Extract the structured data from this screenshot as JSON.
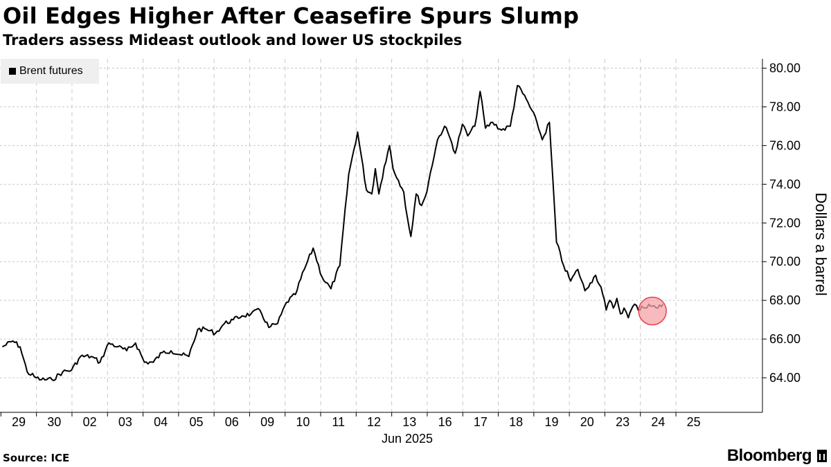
{
  "header": {
    "title": "Oil Edges Higher After Ceasefire Spurs Slump",
    "subtitle": "Traders assess Mideast outlook and lower US stockpiles"
  },
  "footer": {
    "source": "Source: ICE",
    "brand": "Bloomberg"
  },
  "colors": {
    "line": "#000000",
    "highlight_fill": "#f4a4aa",
    "highlight_stroke": "#e3424d",
    "grid": "#c8c8c8",
    "legend_bg": "#efefef"
  },
  "chart_data": {
    "type": "line",
    "title": "Oil Edges Higher After Ceasefire Spurs Slump",
    "subtitle": "Traders assess Mideast outlook and lower US stockpiles",
    "ylabel": "Dollars a barrel",
    "xlabel": "Jun 2025",
    "ylim": [
      62.3,
      81.0
    ],
    "yticks": [
      64,
      66,
      68,
      70,
      72,
      74,
      76,
      78,
      80
    ],
    "ytick_labels": [
      "64.00",
      "66.00",
      "68.00",
      "70.00",
      "72.00",
      "74.00",
      "76.00",
      "78.00",
      "80.00"
    ],
    "x_categories": [
      "29",
      "30",
      "02",
      "03",
      "04",
      "05",
      "06",
      "09",
      "10",
      "11",
      "12",
      "13",
      "16",
      "17",
      "18",
      "19",
      "20",
      "23",
      "24",
      "25"
    ],
    "x_axis_group_label": "Jun 2025",
    "grid": true,
    "legend_position": "top-left",
    "series": [
      {
        "name": "Brent futures",
        "x": [
          0.0,
          0.3,
          0.5,
          0.7,
          0.95,
          1.1,
          1.4,
          1.7,
          1.95,
          2.2,
          2.5,
          2.75,
          3.0,
          3.25,
          3.5,
          3.75,
          4.0,
          4.25,
          4.5,
          4.75,
          5.0,
          5.25,
          5.5,
          5.75,
          6.0,
          6.25,
          6.5,
          6.75,
          7.0,
          7.25,
          7.5,
          7.75,
          8.0,
          8.25,
          8.5,
          8.75,
          9.0,
          9.25,
          9.5,
          9.75,
          10.0,
          10.25,
          10.4,
          10.5,
          10.6,
          10.75,
          10.9,
          11.0,
          11.15,
          11.3,
          11.4,
          11.5,
          11.65,
          11.8,
          11.95,
          12.05,
          12.25,
          12.45,
          12.6,
          12.75,
          12.95,
          13.1,
          13.3,
          13.45,
          13.6,
          13.8,
          14.05,
          14.3,
          14.5,
          14.75,
          15.05,
          15.2,
          15.4,
          15.6,
          15.8,
          16.0,
          16.2,
          16.4,
          16.55,
          16.7,
          16.85,
          17.0,
          17.1,
          17.2,
          17.3,
          17.4,
          17.5,
          17.62,
          17.7,
          17.8,
          17.9,
          18.0,
          18.1,
          18.2,
          18.3,
          18.45,
          18.6
        ],
        "values": [
          65.6,
          65.9,
          65.6,
          64.3,
          64.0,
          63.9,
          63.9,
          64.3,
          64.4,
          65.1,
          65.1,
          64.8,
          65.8,
          65.6,
          65.4,
          65.8,
          64.8,
          64.8,
          65.3,
          65.4,
          65.2,
          65.1,
          66.5,
          66.5,
          66.3,
          66.8,
          67.0,
          67.2,
          67.3,
          67.5,
          66.6,
          66.8,
          67.9,
          68.3,
          69.6,
          70.7,
          69.2,
          68.6,
          69.8,
          74.5,
          76.7,
          73.7,
          73.5,
          74.8,
          73.5,
          74.9,
          76.0,
          74.8,
          74.2,
          73.6,
          72.3,
          71.3,
          73.5,
          72.9,
          73.6,
          74.6,
          76.3,
          77.0,
          76.4,
          75.6,
          77.1,
          76.5,
          77.0,
          78.8,
          76.9,
          77.2,
          76.8,
          77.0,
          79.1,
          78.4,
          77.2,
          76.3,
          77.2,
          71.0,
          69.8,
          69.0,
          69.6,
          68.5,
          68.9,
          69.3,
          68.7,
          67.5,
          68.0,
          67.6,
          68.1,
          67.3,
          67.6,
          67.1,
          67.5,
          67.8,
          67.5,
          67.7,
          67.6,
          67.8,
          67.7,
          67.6,
          67.8
        ]
      }
    ],
    "highlight": {
      "x": 18.3,
      "y": 67.45,
      "shape": "circle"
    }
  }
}
